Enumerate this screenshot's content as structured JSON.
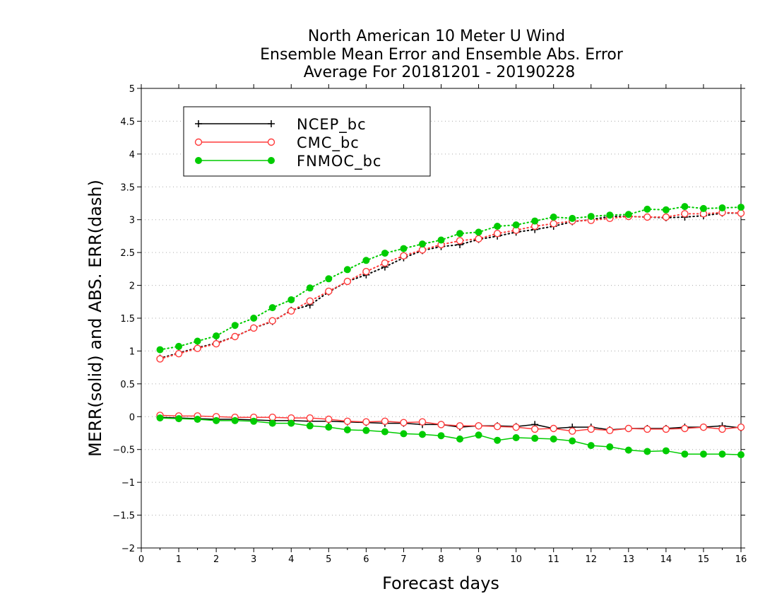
{
  "chart_data": {
    "type": "line",
    "title_lines": [
      "North American 10 Meter U Wind",
      "Ensemble Mean Error and Ensemble Abs. Error",
      "Average For 20181201 - 20190228"
    ],
    "xlabel": "Forecast days",
    "ylabel": "MERR(solid) and ABS. ERR(dash)",
    "xlim": [
      0,
      16
    ],
    "ylim": [
      -2,
      5
    ],
    "x_ticks": [
      "0",
      "1",
      "2",
      "3",
      "4",
      "5",
      "6",
      "7",
      "8",
      "9",
      "10",
      "11",
      "12",
      "13",
      "14",
      "15",
      "16"
    ],
    "y_ticks": [
      "−2",
      "−1.5",
      "−1",
      "−0.5",
      "0",
      "0.5",
      "1",
      "1.5",
      "2",
      "2.5",
      "3",
      "3.5",
      "4",
      "4.5",
      "5"
    ],
    "grid": "dotted-horizontal",
    "legend_position": "top-left",
    "x": [
      0.5,
      1,
      1.5,
      2,
      2.5,
      3,
      3.5,
      4,
      4.5,
      5,
      5.5,
      6,
      6.5,
      7,
      7.5,
      8,
      8.5,
      9,
      9.5,
      10,
      10.5,
      11,
      11.5,
      12,
      12.5,
      13,
      13.5,
      14,
      14.5,
      15,
      15.5,
      16
    ],
    "series": [
      {
        "name": "NCEP_bc",
        "color": "#000000",
        "marker": "plus",
        "merr": [
          -0.01,
          -0.02,
          -0.03,
          -0.04,
          -0.04,
          -0.05,
          -0.06,
          -0.06,
          -0.07,
          -0.07,
          -0.08,
          -0.09,
          -0.1,
          -0.1,
          -0.12,
          -0.12,
          -0.16,
          -0.14,
          -0.14,
          -0.15,
          -0.12,
          -0.18,
          -0.16,
          -0.16,
          -0.2,
          -0.18,
          -0.18,
          -0.18,
          -0.16,
          -0.16,
          -0.14,
          -0.17
        ],
        "abs_err": [
          0.89,
          0.97,
          1.05,
          1.12,
          1.22,
          1.35,
          1.45,
          1.62,
          1.7,
          1.9,
          2.06,
          2.16,
          2.28,
          2.42,
          2.53,
          2.59,
          2.62,
          2.7,
          2.75,
          2.81,
          2.85,
          2.9,
          2.97,
          3.0,
          3.05,
          3.05,
          3.04,
          3.03,
          3.04,
          3.06,
          3.1,
          3.1
        ]
      },
      {
        "name": "CMC_bc",
        "color": "#ff3b3b",
        "marker": "open-circle",
        "merr": [
          0.02,
          0.01,
          0.01,
          0.0,
          -0.01,
          -0.01,
          -0.01,
          -0.02,
          -0.02,
          -0.04,
          -0.07,
          -0.08,
          -0.07,
          -0.09,
          -0.08,
          -0.12,
          -0.14,
          -0.14,
          -0.15,
          -0.16,
          -0.19,
          -0.18,
          -0.22,
          -0.19,
          -0.21,
          -0.18,
          -0.19,
          -0.19,
          -0.18,
          -0.16,
          -0.19,
          -0.16
        ],
        "abs_err": [
          0.88,
          0.96,
          1.04,
          1.11,
          1.22,
          1.35,
          1.46,
          1.61,
          1.76,
          1.91,
          2.06,
          2.21,
          2.34,
          2.45,
          2.54,
          2.62,
          2.68,
          2.71,
          2.79,
          2.84,
          2.9,
          2.94,
          2.98,
          2.99,
          3.02,
          3.05,
          3.04,
          3.04,
          3.09,
          3.09,
          3.11,
          3.1
        ]
      },
      {
        "name": "FNMOC_bc",
        "color": "#00cc00",
        "marker": "filled-circle",
        "merr": [
          -0.02,
          -0.03,
          -0.04,
          -0.06,
          -0.06,
          -0.07,
          -0.1,
          -0.1,
          -0.14,
          -0.16,
          -0.2,
          -0.21,
          -0.23,
          -0.26,
          -0.27,
          -0.29,
          -0.34,
          -0.28,
          -0.36,
          -0.32,
          -0.33,
          -0.34,
          -0.37,
          -0.44,
          -0.46,
          -0.51,
          -0.53,
          -0.52,
          -0.57,
          -0.57,
          -0.57,
          -0.58
        ],
        "abs_err": [
          1.02,
          1.07,
          1.15,
          1.23,
          1.39,
          1.5,
          1.66,
          1.78,
          1.96,
          2.1,
          2.24,
          2.38,
          2.49,
          2.56,
          2.63,
          2.69,
          2.79,
          2.81,
          2.9,
          2.92,
          2.98,
          3.04,
          3.02,
          3.05,
          3.07,
          3.08,
          3.16,
          3.15,
          3.2,
          3.17,
          3.18,
          3.19
        ]
      }
    ]
  }
}
